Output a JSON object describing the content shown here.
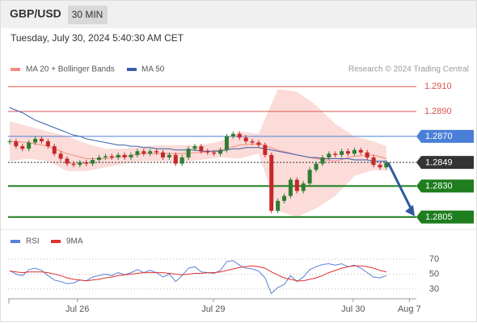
{
  "header": {
    "symbol": "GBP/USD",
    "interval": "30 MIN",
    "timestamp": "Tuesday, July 30, 2024 5:40:30 AM CET",
    "credit": "Research © 2024 Trading Central"
  },
  "chart_data": [
    {
      "type": "candlestick",
      "xlim": [
        -0.25,
        63.7
      ],
      "ylim": [
        1.2799,
        1.2918
      ],
      "candles": {
        "up_color": "#2f7d32",
        "down_color": "#c62828",
        "close": [
          1.2866,
          1.2862,
          1.286,
          1.2865,
          1.2868,
          1.2866,
          1.2862,
          1.2856,
          1.2852,
          1.2848,
          1.2847,
          1.2849,
          1.2848,
          1.2851,
          1.2853,
          1.2854,
          1.2853,
          1.2855,
          1.2853,
          1.2855,
          1.2858,
          1.2856,
          1.2858,
          1.2857,
          1.2853,
          1.2855,
          1.2848,
          1.2853,
          1.286,
          1.2862,
          1.2858,
          1.2857,
          1.2856,
          1.2859,
          1.287,
          1.2872,
          1.2869,
          1.2866,
          1.2865,
          1.2863,
          1.2855,
          1.281,
          1.2818,
          1.2822,
          1.2835,
          1.2826,
          1.2832,
          1.2843,
          1.2848,
          1.2853,
          1.2856,
          1.2855,
          1.2858,
          1.2856,
          1.2859,
          1.2857,
          1.2853,
          1.2847,
          1.2845,
          1.2849
        ]
      },
      "series": [
        {
          "name": "MA 50",
          "color": "#3a5fa8",
          "values": [
            1.2893,
            1.2891,
            1.2889,
            1.2886,
            1.2883,
            1.2881,
            1.2879,
            1.2877,
            1.2875,
            1.2873,
            1.2871,
            1.287,
            1.2868,
            1.2867,
            1.2866,
            1.2865,
            1.2864,
            1.2863,
            1.2863,
            1.2862,
            1.2862,
            1.2861,
            1.2861,
            1.286,
            1.286,
            1.286,
            1.2859,
            1.2859,
            1.2859,
            1.2859,
            1.2858,
            1.2858,
            1.2858,
            1.2858,
            1.2859,
            1.286,
            1.286,
            1.2861,
            1.2861,
            1.2861,
            1.286,
            1.2859,
            1.2858,
            1.2857,
            1.2856,
            1.2855,
            1.2854,
            1.2853,
            1.2853,
            1.2852,
            1.2852,
            1.2852,
            1.2852,
            1.2852,
            1.2851,
            1.2851,
            1.2851,
            1.285,
            1.285,
            1.285
          ]
        }
      ],
      "bands": {
        "name": "MA 20 + Bollinger Bands",
        "color": "#f28b82",
        "x": [
          0,
          3,
          6,
          9,
          12,
          15,
          18,
          21,
          24,
          27,
          30,
          33,
          36,
          39,
          42,
          45,
          48,
          51,
          54,
          57,
          59
        ],
        "upper": [
          1.2882,
          1.2878,
          1.2874,
          1.287,
          1.2864,
          1.286,
          1.286,
          1.2862,
          1.2863,
          1.2863,
          1.2863,
          1.2866,
          1.2874,
          1.2872,
          1.2908,
          1.2906,
          1.2895,
          1.288,
          1.287,
          1.2866,
          1.2862
        ],
        "lower": [
          1.285,
          1.2852,
          1.285,
          1.2842,
          1.2842,
          1.2845,
          1.2848,
          1.285,
          1.285,
          1.2849,
          1.2851,
          1.2853,
          1.2852,
          1.2856,
          1.281,
          1.2805,
          1.2812,
          1.2822,
          1.2838,
          1.2843,
          1.2842
        ],
        "ma20": [
          1.2866,
          1.2865,
          1.2862,
          1.2856,
          1.2852,
          1.2852,
          1.2854,
          1.2856,
          1.2856,
          1.2856,
          1.2857,
          1.2859,
          1.2863,
          1.2864,
          1.2859,
          1.2855,
          1.2852,
          1.285,
          1.2854,
          1.2855,
          1.2852
        ]
      },
      "levels": [
        {
          "value": 1.291,
          "label": "1.2910",
          "color": "#d9534f",
          "style": "text"
        },
        {
          "value": 1.289,
          "label": "1.2890",
          "color": "#d9534f",
          "style": "text"
        },
        {
          "value": 1.287,
          "label": "1.2870",
          "color": "#4a7fd8",
          "style": "box"
        },
        {
          "value": 1.2849,
          "label": "1.2849",
          "color": "#333333",
          "style": "current"
        },
        {
          "value": 1.283,
          "label": "1.2830",
          "color": "#1e7d1e",
          "style": "box"
        },
        {
          "value": 1.2805,
          "label": "1.2805",
          "color": "#1e7d1e",
          "style": "box"
        }
      ]
    },
    {
      "type": "line",
      "xlim": [
        -0.25,
        63.7
      ],
      "ylim": [
        19,
        82
      ],
      "yticks": [
        70,
        50,
        30
      ],
      "xticks": [
        {
          "value": 10.6,
          "label": "Jul 26"
        },
        {
          "value": 31.9,
          "label": "Jul 29"
        },
        {
          "value": 53.8,
          "label": "Jul 30"
        },
        {
          "value": 62.6,
          "label": "Aug 7"
        }
      ],
      "series": [
        {
          "name": "RSI",
          "color": "#5b7fd6",
          "values": [
            55,
            50,
            48,
            56,
            58,
            55,
            48,
            42,
            40,
            37,
            38,
            42,
            41,
            46,
            48,
            50,
            48,
            52,
            49,
            52,
            56,
            52,
            55,
            52,
            46,
            50,
            40,
            48,
            58,
            60,
            53,
            52,
            51,
            55,
            67,
            68,
            62,
            58,
            57,
            54,
            45,
            24,
            32,
            36,
            48,
            40,
            46,
            56,
            60,
            63,
            64,
            62,
            64,
            60,
            62,
            58,
            52,
            46,
            45,
            48
          ]
        },
        {
          "name": "9MA",
          "color": "#e03030",
          "values": [
            54,
            53,
            52,
            53,
            53,
            53,
            52,
            50,
            48,
            45,
            43,
            42,
            41,
            42,
            43,
            45,
            46,
            48,
            49,
            50,
            51,
            52,
            52,
            52,
            52,
            51,
            50,
            49,
            50,
            51,
            51,
            52,
            52,
            53,
            55,
            57,
            59,
            60,
            61,
            60,
            58,
            53,
            49,
            45,
            43,
            41,
            41,
            43,
            45,
            48,
            52,
            55,
            58,
            60,
            61,
            61,
            60,
            58,
            55,
            53
          ]
        }
      ]
    }
  ]
}
